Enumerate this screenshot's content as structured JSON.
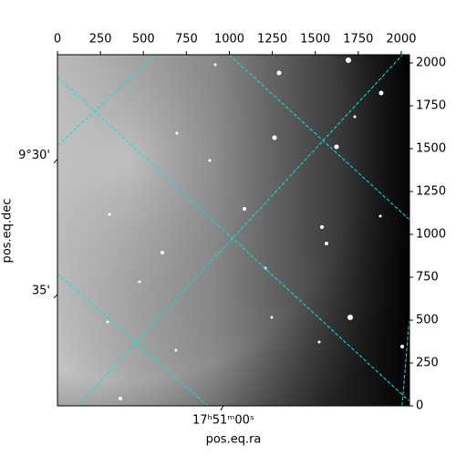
{
  "chart_data": {
    "type": "image",
    "xlim": [
      0,
      2048
    ],
    "ylim": [
      0,
      2048
    ],
    "xticks": [
      0,
      250,
      500,
      750,
      1000,
      1250,
      1500,
      1750,
      2000
    ],
    "yticks": [
      0,
      250,
      500,
      750,
      1000,
      1250,
      1500,
      1750,
      2000
    ],
    "xlabel": "pos.eq.ra",
    "ylabel": "pos.eq.dec",
    "ra_ticks": [
      {
        "label": "17ʰ51ᵐ00ˢ",
        "x": 965
      }
    ],
    "dec_ticks": [
      {
        "label": "9°30'",
        "y": 1438
      },
      {
        "label": "35'",
        "y": 650
      }
    ],
    "grid_color": "#00e5e5",
    "ra_grid": [
      {
        "x": [
          0,
          568
        ],
        "y": [
          1518,
          2048
        ]
      },
      {
        "x": [
          117,
          2005
        ],
        "y": [
          0,
          2045
        ]
      },
      {
        "x": [
          2005,
          2047
        ],
        "y": [
          0,
          505
        ]
      }
    ],
    "dec_grid": [
      {
        "x": [
          0,
          2048
        ],
        "y": [
          1917,
          27
        ]
      },
      {
        "x": [
          0,
          875
        ],
        "y": [
          772,
          0
        ]
      },
      {
        "x": [
          999,
          2048
        ],
        "y": [
          2048,
          1086
        ]
      }
    ]
  }
}
